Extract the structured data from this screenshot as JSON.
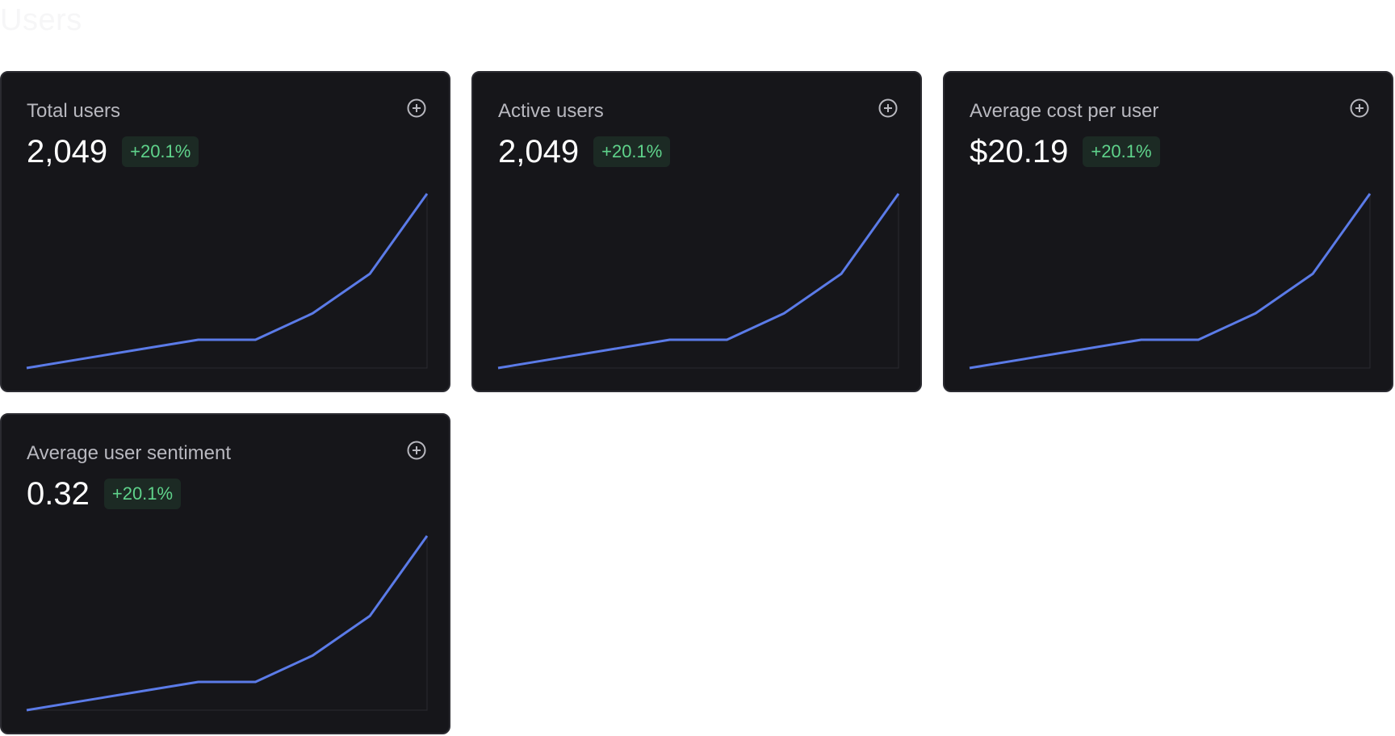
{
  "page": {
    "title": "Users"
  },
  "colors": {
    "card_bg": "#16161a",
    "line": "#5b7be8",
    "delta_positive": "#5fd38b",
    "delta_bg": "#1c2a24"
  },
  "cards": [
    {
      "title": "Total users",
      "value": "2,049",
      "delta": "+20.1%",
      "icon": "plus-circle-icon"
    },
    {
      "title": "Active users",
      "value": "2,049",
      "delta": "+20.1%",
      "icon": "plus-circle-icon"
    },
    {
      "title": "Average cost per user",
      "value": "$20.19",
      "delta": "+20.1%",
      "icon": "plus-circle-icon"
    },
    {
      "title": "Average user sentiment",
      "value": "0.32",
      "delta": "+20.1%",
      "icon": "plus-circle-icon"
    }
  ],
  "chart_data": [
    {
      "type": "line",
      "values": [
        0,
        1,
        2,
        3,
        3,
        5.8,
        10,
        18.5
      ]
    },
    {
      "type": "line",
      "values": [
        0,
        1,
        2,
        3,
        3,
        5.8,
        10,
        18.5
      ]
    },
    {
      "type": "line",
      "values": [
        0,
        1,
        2,
        3,
        3,
        5.8,
        10,
        18.5
      ]
    },
    {
      "type": "line",
      "values": [
        0,
        1,
        2,
        3,
        3,
        5.8,
        10,
        18.5
      ]
    }
  ]
}
